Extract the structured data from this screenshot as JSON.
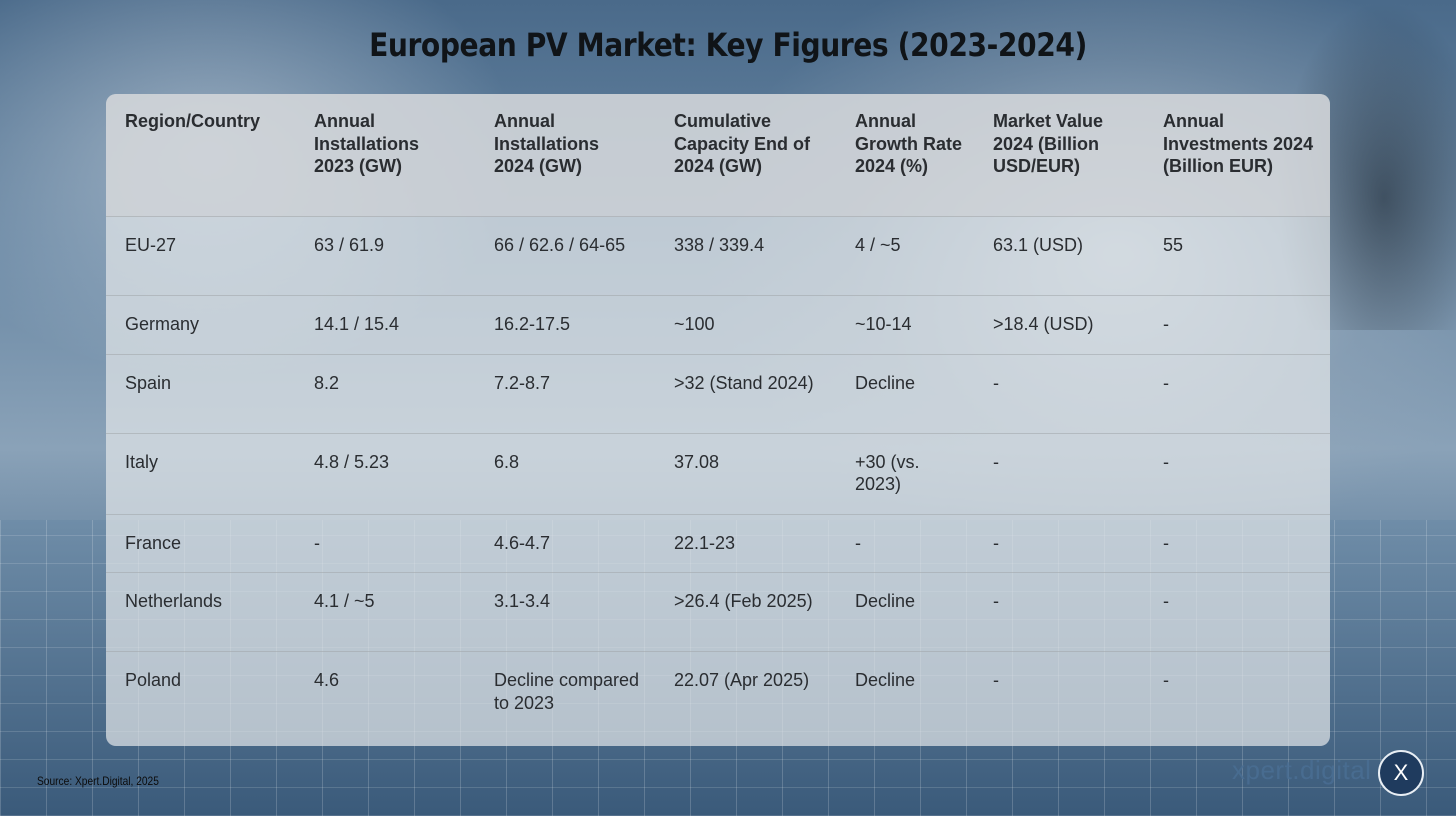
{
  "title": "European PV Market: Key Figures (2023-2024)",
  "table": {
    "headers": [
      "Region/Country",
      "Annual Installations 2023 (GW)",
      "Annual Installations 2024 (GW)",
      "Cumulative Capacity End of 2024 (GW)",
      "Annual Growth Rate 2024 (%)",
      "Market Value 2024 (Billion USD/EUR)",
      "Annual Investments 2024 (Billion EUR)"
    ],
    "rows": [
      [
        "EU-27",
        "63 / 61.9",
        "66 / 62.6 / 64-65",
        "338 / 339.4",
        "4 / ~5",
        "63.1 (USD)",
        "55"
      ],
      [
        "Germany",
        "14.1 / 15.4",
        "16.2-17.5",
        "~100",
        "~10-14",
        ">18.4 (USD)",
        "-"
      ],
      [
        "Spain",
        "8.2",
        "7.2-8.7",
        ">32 (Stand 2024)",
        "Decline",
        "-",
        "-"
      ],
      [
        "Italy",
        "4.8 / 5.23",
        "6.8",
        "37.08",
        "+30 (vs. 2023)",
        "-",
        "-"
      ],
      [
        "France",
        "-",
        "4.6-4.7",
        "22.1-23",
        "-",
        "-",
        "-"
      ],
      [
        "Netherlands",
        "4.1 / ~5",
        "3.1-3.4",
        ">26.4 (Feb 2025)",
        "Decline",
        "-",
        "-"
      ],
      [
        "Poland",
        "4.6",
        "Decline compared to 2023",
        "22.07 (Apr 2025)",
        "Decline",
        "-",
        "-"
      ]
    ]
  },
  "footer": {
    "source": "Source: Xpert.Digital, 2025",
    "brand": "xpert.digital",
    "brand_badge": "X"
  }
}
